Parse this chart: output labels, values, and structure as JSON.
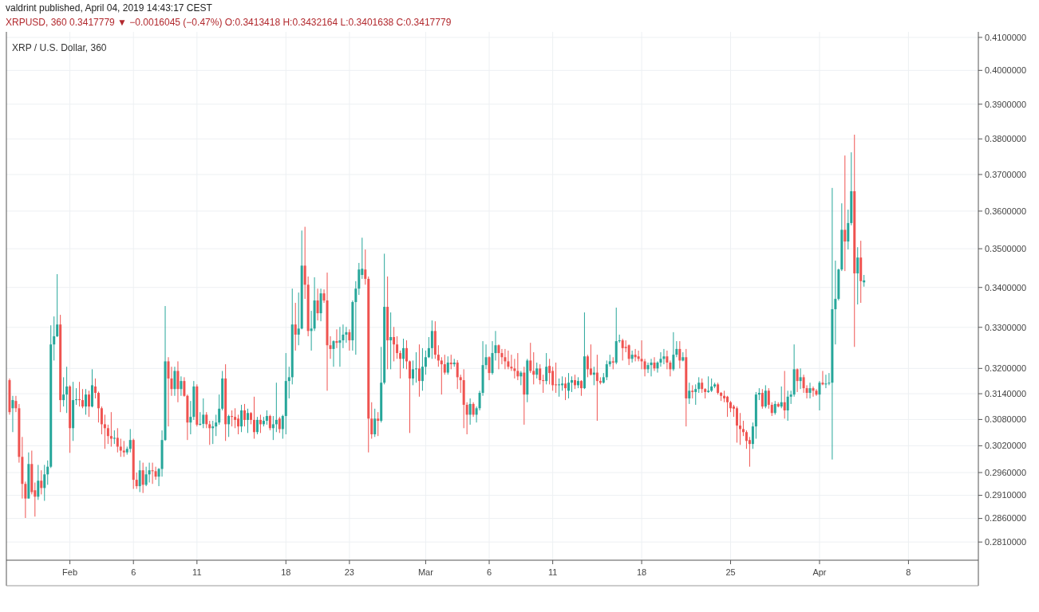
{
  "chart_data": {
    "type": "candlestick",
    "title": "XRP / U.S. Dollar, 360",
    "subtitle": "valdrint published, April 04, 2019 14:43:17 CEST",
    "annotations": [
      "XRPUSD, 360  0.3417779 ▼ −0.0016045 (−0.47%)  O:0.3413418  H:0.3432164  L:0.3401638  C:0.3417779"
    ],
    "colors": [
      "#ef5350",
      "#26a69a",
      "#ef5350",
      "#ef5350",
      "#ef5350",
      "#ef5350",
      "#26a69a",
      "#ef5350",
      "#ef5350",
      "#26a69a",
      "#ef5350",
      "#26a69a",
      "#26a69a",
      "#26a69a",
      "#26a69a",
      "#26a69a",
      "#ef5350",
      "#26a69a",
      "#26a69a",
      "#ef5350",
      "#26a69a",
      "#26a69a",
      "#ef5350",
      "#ef5350",
      "#26a69a",
      "#ef5350",
      "#26a69a",
      "#ef5350",
      "#ef5350",
      "#ef5350",
      "#ef5350",
      "#ef5350",
      "#ef5350",
      "#26a69a",
      "#ef5350",
      "#ef5350",
      "#ef5350",
      "#26a69a",
      "#26a69a",
      "#ef5350",
      "#ef5350",
      "#26a69a",
      "#ef5350",
      "#26a69a",
      "#26a69a",
      "#ef5350",
      "#ef5350",
      "#26a69a",
      "#26a69a",
      "#26a69a",
      "#ef5350",
      "#ef5350",
      "#26a69a",
      "#ef5350",
      "#26a69a",
      "#ef5350",
      "#ef5350",
      "#26a69a",
      "#26a69a",
      "#ef5350",
      "#26a69a",
      "#26a69a",
      "#ef5350",
      "#ef5350",
      "#26a69a",
      "#26a69a",
      "#26a69a",
      "#26a69a",
      "#ef5350",
      "#26a69a",
      "#ef5350",
      "#ef5350",
      "#ef5350",
      "#26a69a",
      "#ef5350",
      "#26a69a",
      "#ef5350",
      "#ef5350",
      "#26a69a",
      "#ef5350",
      "#26a69a",
      "#26a69a",
      "#ef5350",
      "#26a69a",
      "#26a69a",
      "#ef5350",
      "#26a69a",
      "#26a69a",
      "#26a69a",
      "#26a69a",
      "#ef5350",
      "#26a69a",
      "#26a69a",
      "#ef5350",
      "#ef5350",
      "#26a69a",
      "#26a69a",
      "#ef5350",
      "#26a69a",
      "#ef5350",
      "#ef5350",
      "#ef5350",
      "#26a69a",
      "#ef5350",
      "#26a69a",
      "#26a69a",
      "#26a69a",
      "#ef5350",
      "#26a69a",
      "#26a69a",
      "#26a69a",
      "#26a69a",
      "#ef5350",
      "#ef5350",
      "#ef5350",
      "#26a69a",
      "#ef5350",
      "#26a69a",
      "#26a69a",
      "#ef5350",
      "#26a69a",
      "#ef5350",
      "#ef5350",
      "#ef5350",
      "#26a69a",
      "#ef5350",
      "#ef5350",
      "#26a69a",
      "#26a69a",
      "#ef5350",
      "#26a69a",
      "#26a69a",
      "#26a69a",
      "#26a69a",
      "#ef5350",
      "#ef5350",
      "#ef5350",
      "#ef5350",
      "#26a69a",
      "#ef5350",
      "#26a69a",
      "#ef5350",
      "#ef5350",
      "#ef5350",
      "#ef5350",
      "#26a69a",
      "#ef5350",
      "#26a69a",
      "#26a69a",
      "#26a69a",
      "#26a69a",
      "#ef5350",
      "#26a69a",
      "#26a69a",
      "#ef5350",
      "#ef5350",
      "#ef5350",
      "#ef5350",
      "#ef5350",
      "#ef5350",
      "#ef5350",
      "#26a69a",
      "#ef5350",
      "#26a69a",
      "#ef5350",
      "#ef5350",
      "#26a69a",
      "#ef5350",
      "#ef5350",
      "#26a69a",
      "#ef5350",
      "#ef5350",
      "#ef5350",
      "#26a69a",
      "#26a69a",
      "#ef5350",
      "#26a69a",
      "#26a69a",
      "#ef5350",
      "#26a69a",
      "#ef5350",
      "#26a69a",
      "#ef5350",
      "#ef5350",
      "#26a69a",
      "#ef5350",
      "#ef5350",
      "#26a69a",
      "#26a69a",
      "#26a69a",
      "#ef5350",
      "#26a69a",
      "#26a69a",
      "#ef5350",
      "#ef5350",
      "#ef5350",
      "#26a69a",
      "#ef5350",
      "#ef5350",
      "#ef5350",
      "#ef5350",
      "#26a69a",
      "#26a69a",
      "#ef5350",
      "#26a69a",
      "#26a69a",
      "#26a69a",
      "#ef5350",
      "#ef5350",
      "#26a69a",
      "#26a69a",
      "#ef5350",
      "#26a69a",
      "#ef5350",
      "#26a69a",
      "#ef5350",
      "#26a69a",
      "#26a69a",
      "#ef5350",
      "#ef5350",
      "#26a69a",
      "#26a69a",
      "#26a69a",
      "#ef5350",
      "#ef5350",
      "#ef5350",
      "#ef5350",
      "#ef5350",
      "#ef5350",
      "#ef5350",
      "#ef5350",
      "#ef5350",
      "#ef5350",
      "#ef5350",
      "#26a69a",
      "#26a69a",
      "#26a69a",
      "#ef5350",
      "#26a69a",
      "#ef5350",
      "#ef5350",
      "#26a69a",
      "#ef5350",
      "#26a69a",
      "#ef5350",
      "#26a69a",
      "#26a69a",
      "#26a69a",
      "#ef5350",
      "#26a69a",
      "#ef5350",
      "#ef5350",
      "#26a69a",
      "#ef5350",
      "#ef5350",
      "#26a69a",
      "#ef5350",
      "#26a69a",
      "#26a69a",
      "#26a69a",
      "#26a69a",
      "#26a69a",
      "#26a69a",
      "#ef5350",
      "#26a69a",
      "#26a69a",
      "#ef5350",
      "#26a69a",
      "#ef5350",
      "#26a69a"
    ],
    "grid": true,
    "log": true,
    "xlim": [
      "2019-01-27T00:00",
      "2019-04-13T12:00"
    ],
    "ylim": [
      0.2772,
      0.4117
    ],
    "xticks": [
      {
        "value": "2019-02-01",
        "label": "Feb"
      },
      {
        "value": "2019-02-06",
        "label": "6"
      },
      {
        "value": "2019-02-11",
        "label": "11"
      },
      {
        "value": "2019-02-18",
        "label": "18"
      },
      {
        "value": "2019-02-23",
        "label": "23"
      },
      {
        "value": "2019-03-01",
        "label": "Mar"
      },
      {
        "value": "2019-03-06",
        "label": "6"
      },
      {
        "value": "2019-03-11",
        "label": "11"
      },
      {
        "value": "2019-03-18",
        "label": "18"
      },
      {
        "value": "2019-03-25",
        "label": "25"
      },
      {
        "value": "2019-04-01",
        "label": "Apr"
      },
      {
        "value": "2019-04-08",
        "label": "8"
      }
    ],
    "yticks": [
      {
        "value": 0.281,
        "label": "0.2810000"
      },
      {
        "value": 0.286,
        "label": "0.2860000"
      },
      {
        "value": 0.291,
        "label": "0.2910000"
      },
      {
        "value": 0.296,
        "label": "0.2960000"
      },
      {
        "value": 0.302,
        "label": "0.3020000"
      },
      {
        "value": 0.308,
        "label": "0.3080000"
      },
      {
        "value": 0.314,
        "label": "0.3140000"
      },
      {
        "value": 0.32,
        "label": "0.3200000"
      },
      {
        "value": 0.33,
        "label": "0.3300000"
      },
      {
        "value": 0.34,
        "label": "0.3400000"
      },
      {
        "value": 0.35,
        "label": "0.3500000"
      },
      {
        "value": 0.36,
        "label": "0.3600000"
      },
      {
        "value": 0.37,
        "label": "0.3700000"
      },
      {
        "value": 0.38,
        "label": "0.3800000"
      },
      {
        "value": 0.39,
        "label": "0.3900000"
      },
      {
        "value": 0.4,
        "label": "0.4000000"
      },
      {
        "value": 0.41,
        "label": "0.4100000"
      }
    ],
    "x": [
      "2019-01-27T06:00",
      "2019-01-27T12:00",
      "2019-01-27T18:00",
      "2019-01-28T00:00",
      "2019-01-28T06:00",
      "2019-01-28T12:00",
      "2019-01-28T18:00",
      "2019-01-29T00:00",
      "2019-01-29T06:00",
      "2019-01-29T12:00",
      "2019-01-29T18:00",
      "2019-01-30T00:00",
      "2019-01-30T06:00",
      "2019-01-30T12:00",
      "2019-01-30T18:00",
      "2019-01-31T00:00",
      "2019-01-31T06:00",
      "2019-01-31T12:00",
      "2019-01-31T18:00",
      "2019-02-01T00:00",
      "2019-02-01T06:00",
      "2019-02-01T12:00",
      "2019-02-01T18:00",
      "2019-02-02T00:00",
      "2019-02-02T06:00",
      "2019-02-02T12:00",
      "2019-02-02T18:00",
      "2019-02-03T00:00",
      "2019-02-03T06:00",
      "2019-02-03T12:00",
      "2019-02-03T18:00",
      "2019-02-04T00:00",
      "2019-02-04T06:00",
      "2019-02-04T12:00",
      "2019-02-04T18:00",
      "2019-02-05T00:00",
      "2019-02-05T06:00",
      "2019-02-05T12:00",
      "2019-02-05T18:00",
      "2019-02-06T00:00",
      "2019-02-06T06:00",
      "2019-02-06T12:00",
      "2019-02-06T18:00",
      "2019-02-07T00:00",
      "2019-02-07T06:00",
      "2019-02-07T12:00",
      "2019-02-07T18:00",
      "2019-02-08T00:00",
      "2019-02-08T06:00",
      "2019-02-08T12:00",
      "2019-02-08T18:00",
      "2019-02-09T00:00",
      "2019-02-09T06:00",
      "2019-02-09T12:00",
      "2019-02-09T18:00",
      "2019-02-10T00:00",
      "2019-02-10T06:00",
      "2019-02-10T12:00",
      "2019-02-10T18:00",
      "2019-02-11T00:00",
      "2019-02-11T06:00",
      "2019-02-11T12:00",
      "2019-02-11T18:00",
      "2019-02-12T00:00",
      "2019-02-12T06:00",
      "2019-02-12T12:00",
      "2019-02-12T18:00",
      "2019-02-13T00:00",
      "2019-02-13T06:00",
      "2019-02-13T12:00",
      "2019-02-13T18:00",
      "2019-02-14T00:00",
      "2019-02-14T06:00",
      "2019-02-14T12:00",
      "2019-02-14T18:00",
      "2019-02-15T00:00",
      "2019-02-15T06:00",
      "2019-02-15T12:00",
      "2019-02-15T18:00",
      "2019-02-16T00:00",
      "2019-02-16T06:00",
      "2019-02-16T12:00",
      "2019-02-16T18:00",
      "2019-02-17T00:00",
      "2019-02-17T06:00",
      "2019-02-17T12:00",
      "2019-02-17T18:00",
      "2019-02-18T00:00",
      "2019-02-18T06:00",
      "2019-02-18T12:00",
      "2019-02-18T18:00",
      "2019-02-19T00:00",
      "2019-02-19T06:00",
      "2019-02-19T12:00",
      "2019-02-19T18:00",
      "2019-02-20T00:00",
      "2019-02-20T06:00",
      "2019-02-20T12:00",
      "2019-02-20T18:00",
      "2019-02-21T00:00",
      "2019-02-21T06:00",
      "2019-02-21T12:00",
      "2019-02-21T18:00",
      "2019-02-22T00:00",
      "2019-02-22T06:00",
      "2019-02-22T12:00",
      "2019-02-22T18:00",
      "2019-02-23T00:00",
      "2019-02-23T06:00",
      "2019-02-23T12:00",
      "2019-02-23T18:00",
      "2019-02-24T00:00",
      "2019-02-24T06:00",
      "2019-02-24T12:00",
      "2019-02-24T18:00",
      "2019-02-25T00:00",
      "2019-02-25T06:00",
      "2019-02-25T12:00",
      "2019-02-25T18:00",
      "2019-02-26T00:00",
      "2019-02-26T06:00",
      "2019-02-26T12:00",
      "2019-02-26T18:00",
      "2019-02-27T00:00",
      "2019-02-27T06:00",
      "2019-02-27T12:00",
      "2019-02-27T18:00",
      "2019-02-28T00:00",
      "2019-02-28T06:00",
      "2019-02-28T12:00",
      "2019-02-28T18:00",
      "2019-03-01T00:00",
      "2019-03-01T06:00",
      "2019-03-01T12:00",
      "2019-03-01T18:00",
      "2019-03-02T00:00",
      "2019-03-02T06:00",
      "2019-03-02T12:00",
      "2019-03-02T18:00",
      "2019-03-03T00:00",
      "2019-03-03T06:00",
      "2019-03-03T12:00",
      "2019-03-03T18:00",
      "2019-03-04T00:00",
      "2019-03-04T06:00",
      "2019-03-04T12:00",
      "2019-03-04T18:00",
      "2019-03-05T00:00",
      "2019-03-05T06:00",
      "2019-03-05T12:00",
      "2019-03-05T18:00",
      "2019-03-06T00:00",
      "2019-03-06T06:00",
      "2019-03-06T12:00",
      "2019-03-06T18:00",
      "2019-03-07T00:00",
      "2019-03-07T06:00",
      "2019-03-07T12:00",
      "2019-03-07T18:00",
      "2019-03-08T00:00",
      "2019-03-08T06:00",
      "2019-03-08T12:00",
      "2019-03-08T18:00",
      "2019-03-09T00:00",
      "2019-03-09T06:00",
      "2019-03-09T12:00",
      "2019-03-09T18:00",
      "2019-03-10T00:00",
      "2019-03-10T06:00",
      "2019-03-10T12:00",
      "2019-03-10T18:00",
      "2019-03-11T00:00",
      "2019-03-11T06:00",
      "2019-03-11T12:00",
      "2019-03-11T18:00",
      "2019-03-12T00:00",
      "2019-03-12T06:00",
      "2019-03-12T12:00",
      "2019-03-12T18:00",
      "2019-03-13T00:00",
      "2019-03-13T06:00",
      "2019-03-13T12:00",
      "2019-03-13T18:00",
      "2019-03-14T00:00",
      "2019-03-14T06:00",
      "2019-03-14T12:00",
      "2019-03-14T18:00",
      "2019-03-15T00:00",
      "2019-03-15T06:00",
      "2019-03-15T12:00",
      "2019-03-15T18:00",
      "2019-03-16T00:00",
      "2019-03-16T06:00",
      "2019-03-16T12:00",
      "2019-03-16T18:00",
      "2019-03-17T00:00",
      "2019-03-17T06:00",
      "2019-03-17T12:00",
      "2019-03-17T18:00",
      "2019-03-18T00:00",
      "2019-03-18T06:00",
      "2019-03-18T12:00",
      "2019-03-18T18:00",
      "2019-03-19T00:00",
      "2019-03-19T06:00",
      "2019-03-19T12:00",
      "2019-03-19T18:00",
      "2019-03-20T00:00",
      "2019-03-20T06:00",
      "2019-03-20T12:00",
      "2019-03-20T18:00",
      "2019-03-21T00:00",
      "2019-03-21T06:00",
      "2019-03-21T12:00",
      "2019-03-21T18:00",
      "2019-03-22T00:00",
      "2019-03-22T06:00",
      "2019-03-22T12:00",
      "2019-03-22T18:00",
      "2019-03-23T00:00",
      "2019-03-23T06:00",
      "2019-03-23T12:00",
      "2019-03-23T18:00",
      "2019-03-24T00:00",
      "2019-03-24T06:00",
      "2019-03-24T12:00",
      "2019-03-24T18:00",
      "2019-03-25T00:00",
      "2019-03-25T06:00",
      "2019-03-25T12:00",
      "2019-03-25T18:00",
      "2019-03-26T00:00",
      "2019-03-26T06:00",
      "2019-03-26T12:00",
      "2019-03-26T18:00",
      "2019-03-27T00:00",
      "2019-03-27T06:00",
      "2019-03-27T12:00",
      "2019-03-27T18:00",
      "2019-03-28T00:00",
      "2019-03-28T06:00",
      "2019-03-28T12:00",
      "2019-03-28T18:00",
      "2019-03-29T00:00",
      "2019-03-29T06:00",
      "2019-03-29T12:00",
      "2019-03-29T18:00",
      "2019-03-30T00:00",
      "2019-03-30T06:00",
      "2019-03-30T12:00",
      "2019-03-30T18:00",
      "2019-03-31T00:00",
      "2019-03-31T06:00",
      "2019-03-31T12:00",
      "2019-03-31T18:00",
      "2019-04-01T00:00",
      "2019-04-01T06:00",
      "2019-04-01T12:00",
      "2019-04-01T18:00",
      "2019-04-02T00:00",
      "2019-04-02T06:00",
      "2019-04-02T12:00",
      "2019-04-02T18:00",
      "2019-04-03T00:00",
      "2019-04-03T06:00",
      "2019-04-03T12:00",
      "2019-04-03T18:00",
      "2019-04-04T00:00",
      "2019-04-04T06:00",
      "2019-04-04T12:00"
    ],
    "ohlc": [
      [
        0.3172,
        0.3176,
        0.3091,
        0.3097
      ],
      [
        0.3106,
        0.3135,
        0.3051,
        0.3125
      ],
      [
        0.3123,
        0.3135,
        0.3097,
        0.3106
      ],
      [
        0.3106,
        0.3116,
        0.2982,
        0.2995
      ],
      [
        0.2995,
        0.304,
        0.2903,
        0.2935
      ],
      [
        0.2935,
        0.294,
        0.2861,
        0.2903
      ],
      [
        0.2903,
        0.3005,
        0.2903,
        0.2979
      ],
      [
        0.2979,
        0.3009,
        0.2912,
        0.2917
      ],
      [
        0.2921,
        0.2938,
        0.2864,
        0.2907
      ],
      [
        0.2907,
        0.2977,
        0.29,
        0.2942
      ],
      [
        0.2942,
        0.2965,
        0.2912,
        0.2926
      ],
      [
        0.2926,
        0.2977,
        0.2898,
        0.2956
      ],
      [
        0.2956,
        0.2987,
        0.2933,
        0.2973
      ],
      [
        0.2973,
        0.3305,
        0.297,
        0.3258
      ],
      [
        0.3258,
        0.3327,
        0.3219,
        0.3278
      ],
      [
        0.3278,
        0.3434,
        0.3276,
        0.3307
      ],
      [
        0.3307,
        0.3331,
        0.3097,
        0.3125
      ],
      [
        0.3125,
        0.3179,
        0.311,
        0.3138
      ],
      [
        0.3138,
        0.3204,
        0.3095,
        0.3157
      ],
      [
        0.3157,
        0.316,
        0.3004,
        0.306
      ],
      [
        0.306,
        0.3168,
        0.3031,
        0.3125
      ],
      [
        0.3125,
        0.3153,
        0.3114,
        0.3127
      ],
      [
        0.3127,
        0.3168,
        0.311,
        0.3125
      ],
      [
        0.3125,
        0.3151,
        0.3106,
        0.311
      ],
      [
        0.311,
        0.3151,
        0.3091,
        0.3138
      ],
      [
        0.3138,
        0.3147,
        0.3086,
        0.311
      ],
      [
        0.311,
        0.3198,
        0.3108,
        0.316
      ],
      [
        0.3157,
        0.3176,
        0.3129,
        0.3142
      ],
      [
        0.3142,
        0.3145,
        0.3073,
        0.3106
      ],
      [
        0.3106,
        0.311,
        0.3046,
        0.3069
      ],
      [
        0.3069,
        0.3091,
        0.3013,
        0.306
      ],
      [
        0.306,
        0.3068,
        0.3024,
        0.3042
      ],
      [
        0.3042,
        0.3097,
        0.3018,
        0.3036
      ],
      [
        0.3036,
        0.3055,
        0.3024,
        0.3038
      ],
      [
        0.3038,
        0.306,
        0.3005,
        0.3018
      ],
      [
        0.3018,
        0.3036,
        0.2995,
        0.3009
      ],
      [
        0.3009,
        0.3031,
        0.2995,
        0.3005
      ],
      [
        0.3005,
        0.3018,
        0.3,
        0.3013
      ],
      [
        0.3013,
        0.3058,
        0.3005,
        0.3033
      ],
      [
        0.3033,
        0.3036,
        0.2924,
        0.2944
      ],
      [
        0.2944,
        0.296,
        0.2924,
        0.293
      ],
      [
        0.293,
        0.2987,
        0.2917,
        0.2965
      ],
      [
        0.2965,
        0.2982,
        0.2915,
        0.2933
      ],
      [
        0.2933,
        0.2973,
        0.293,
        0.2956
      ],
      [
        0.2956,
        0.2982,
        0.2938,
        0.2965
      ],
      [
        0.2965,
        0.2982,
        0.2935,
        0.2963
      ],
      [
        0.2963,
        0.2973,
        0.2944,
        0.2951
      ],
      [
        0.2951,
        0.297,
        0.293,
        0.2968
      ],
      [
        0.2968,
        0.3055,
        0.2951,
        0.3033
      ],
      [
        0.3033,
        0.3353,
        0.3031,
        0.3217
      ],
      [
        0.3217,
        0.3227,
        0.3064,
        0.3176
      ],
      [
        0.3176,
        0.3204,
        0.3135,
        0.3151
      ],
      [
        0.3151,
        0.3204,
        0.3135,
        0.3194
      ],
      [
        0.3194,
        0.3217,
        0.312,
        0.3151
      ],
      [
        0.3151,
        0.3181,
        0.3135,
        0.317
      ],
      [
        0.317,
        0.3179,
        0.3133,
        0.3135
      ],
      [
        0.3135,
        0.3138,
        0.3033,
        0.3073
      ],
      [
        0.3073,
        0.3123,
        0.3046,
        0.3086
      ],
      [
        0.3086,
        0.317,
        0.3079,
        0.3157
      ],
      [
        0.3157,
        0.3162,
        0.3064,
        0.3068
      ],
      [
        0.3068,
        0.3097,
        0.3066,
        0.307
      ],
      [
        0.307,
        0.3129,
        0.306,
        0.3091
      ],
      [
        0.3091,
        0.3097,
        0.306,
        0.3069
      ],
      [
        0.3069,
        0.3077,
        0.3022,
        0.306
      ],
      [
        0.306,
        0.3077,
        0.3024,
        0.3064
      ],
      [
        0.3064,
        0.3091,
        0.3042,
        0.3073
      ],
      [
        0.3073,
        0.3138,
        0.3068,
        0.3105
      ],
      [
        0.3105,
        0.3194,
        0.3101,
        0.3176
      ],
      [
        0.3176,
        0.321,
        0.3031,
        0.3069
      ],
      [
        0.3069,
        0.3091,
        0.304,
        0.3088
      ],
      [
        0.3088,
        0.3101,
        0.3064,
        0.3086
      ],
      [
        0.3086,
        0.3106,
        0.306,
        0.3079
      ],
      [
        0.3082,
        0.3091,
        0.3046,
        0.3064
      ],
      [
        0.3064,
        0.3114,
        0.3051,
        0.3101
      ],
      [
        0.3101,
        0.3116,
        0.3064,
        0.3079
      ],
      [
        0.3079,
        0.3105,
        0.3049,
        0.3095
      ],
      [
        0.3095,
        0.3097,
        0.3069,
        0.3079
      ],
      [
        0.3079,
        0.3133,
        0.3036,
        0.3051
      ],
      [
        0.3051,
        0.3086,
        0.3046,
        0.3079
      ],
      [
        0.3079,
        0.3091,
        0.3049,
        0.3069
      ],
      [
        0.3069,
        0.3086,
        0.3064,
        0.3077
      ],
      [
        0.3077,
        0.3101,
        0.3068,
        0.3088
      ],
      [
        0.3088,
        0.3091,
        0.3055,
        0.306
      ],
      [
        0.306,
        0.3088,
        0.3033,
        0.3069
      ],
      [
        0.3069,
        0.3166,
        0.3051,
        0.3079
      ],
      [
        0.3082,
        0.3086,
        0.3049,
        0.3058
      ],
      [
        0.3058,
        0.3091,
        0.3036,
        0.3088
      ],
      [
        0.3088,
        0.3237,
        0.3046,
        0.317
      ],
      [
        0.317,
        0.3204,
        0.3129,
        0.3179
      ],
      [
        0.3179,
        0.3397,
        0.3162,
        0.3307
      ],
      [
        0.3307,
        0.3361,
        0.3243,
        0.3282
      ],
      [
        0.3282,
        0.3387,
        0.3256,
        0.3297
      ],
      [
        0.3297,
        0.3548,
        0.3295,
        0.3456
      ],
      [
        0.3456,
        0.3558,
        0.3371,
        0.3407
      ],
      [
        0.3407,
        0.3428,
        0.3278,
        0.3291
      ],
      [
        0.3291,
        0.3341,
        0.3243,
        0.3297
      ],
      [
        0.3297,
        0.3426,
        0.3291,
        0.3367
      ],
      [
        0.3367,
        0.3397,
        0.3317,
        0.3335
      ],
      [
        0.3335,
        0.3397,
        0.3315,
        0.3385
      ],
      [
        0.3385,
        0.3395,
        0.3361,
        0.3367
      ],
      [
        0.3367,
        0.3438,
        0.3147,
        0.3256
      ],
      [
        0.3256,
        0.3278,
        0.3223,
        0.3247
      ],
      [
        0.3247,
        0.3268,
        0.3204,
        0.3266
      ],
      [
        0.3266,
        0.3295,
        0.3249,
        0.3262
      ],
      [
        0.3262,
        0.3301,
        0.3204,
        0.3268
      ],
      [
        0.3268,
        0.3307,
        0.3249,
        0.3282
      ],
      [
        0.3282,
        0.3301,
        0.3262,
        0.3288
      ],
      [
        0.3288,
        0.3295,
        0.3243,
        0.3268
      ],
      [
        0.3268,
        0.3367,
        0.3243,
        0.3363
      ],
      [
        0.3363,
        0.3416,
        0.3233,
        0.3397
      ],
      [
        0.3397,
        0.3463,
        0.3381,
        0.3446
      ],
      [
        0.3432,
        0.3529,
        0.3422,
        0.3448
      ],
      [
        0.3446,
        0.3498,
        0.3407,
        0.3422
      ],
      [
        0.3422,
        0.3428,
        0.3005,
        0.3082
      ],
      [
        0.3082,
        0.312,
        0.3036,
        0.3046
      ],
      [
        0.3046,
        0.3105,
        0.304,
        0.3082
      ],
      [
        0.3082,
        0.3097,
        0.3042,
        0.3077
      ],
      [
        0.3077,
        0.3252,
        0.3073,
        0.3166
      ],
      [
        0.3166,
        0.3487,
        0.3162,
        0.3351
      ],
      [
        0.3351,
        0.3428,
        0.3198,
        0.3268
      ],
      [
        0.3268,
        0.3337,
        0.3198,
        0.3276
      ],
      [
        0.3276,
        0.3301,
        0.3217,
        0.3258
      ],
      [
        0.3258,
        0.3278,
        0.3223,
        0.3237
      ],
      [
        0.3237,
        0.3243,
        0.3176,
        0.3223
      ],
      [
        0.3223,
        0.3272,
        0.32,
        0.3249
      ],
      [
        0.3249,
        0.3268,
        0.3198,
        0.3217
      ],
      [
        0.3217,
        0.3219,
        0.3049,
        0.3176
      ],
      [
        0.3176,
        0.3219,
        0.316,
        0.3198
      ],
      [
        0.3198,
        0.3239,
        0.3166,
        0.32
      ],
      [
        0.32,
        0.3258,
        0.3133,
        0.317
      ],
      [
        0.317,
        0.3249,
        0.3147,
        0.3204
      ],
      [
        0.3204,
        0.3243,
        0.3185,
        0.3227
      ],
      [
        0.3227,
        0.3276,
        0.3225,
        0.3249
      ],
      [
        0.3249,
        0.3317,
        0.3223,
        0.3291
      ],
      [
        0.3291,
        0.3315,
        0.3223,
        0.3233
      ],
      [
        0.3233,
        0.3256,
        0.3204,
        0.3219
      ],
      [
        0.3219,
        0.3227,
        0.3138,
        0.321
      ],
      [
        0.321,
        0.3233,
        0.3185,
        0.319
      ],
      [
        0.319,
        0.3229,
        0.3185,
        0.3214
      ],
      [
        0.3214,
        0.3233,
        0.3198,
        0.321
      ],
      [
        0.321,
        0.3223,
        0.3204,
        0.3214
      ],
      [
        0.3214,
        0.322,
        0.3151,
        0.3179
      ],
      [
        0.3179,
        0.3185,
        0.3142,
        0.3172
      ],
      [
        0.3172,
        0.3198,
        0.306,
        0.3114
      ],
      [
        0.3114,
        0.312,
        0.3046,
        0.3091
      ],
      [
        0.3091,
        0.3129,
        0.3068,
        0.3116
      ],
      [
        0.3116,
        0.312,
        0.3086,
        0.3091
      ],
      [
        0.3091,
        0.311,
        0.3073,
        0.3106
      ],
      [
        0.3106,
        0.3147,
        0.3101,
        0.3142
      ],
      [
        0.3142,
        0.3266,
        0.3135,
        0.3208
      ],
      [
        0.3208,
        0.3258,
        0.3198,
        0.3227
      ],
      [
        0.3227,
        0.3229,
        0.3172,
        0.3189
      ],
      [
        0.3189,
        0.3266,
        0.3185,
        0.3237
      ],
      [
        0.3237,
        0.3291,
        0.3219,
        0.3256
      ],
      [
        0.3256,
        0.3258,
        0.3198,
        0.3237
      ],
      [
        0.3237,
        0.3247,
        0.321,
        0.3227
      ],
      [
        0.3227,
        0.3247,
        0.3198,
        0.3217
      ],
      [
        0.3217,
        0.3243,
        0.3198,
        0.3204
      ],
      [
        0.3204,
        0.3233,
        0.3194,
        0.32
      ],
      [
        0.32,
        0.3223,
        0.3176,
        0.3194
      ],
      [
        0.3194,
        0.3237,
        0.3172,
        0.3181
      ],
      [
        0.3181,
        0.3194,
        0.316,
        0.319
      ],
      [
        0.319,
        0.3204,
        0.3068,
        0.3138
      ],
      [
        0.3138,
        0.3223,
        0.312,
        0.3219
      ],
      [
        0.3219,
        0.3262,
        0.3189,
        0.3194
      ],
      [
        0.3194,
        0.3239,
        0.3162,
        0.3185
      ],
      [
        0.3185,
        0.3214,
        0.3176,
        0.32
      ],
      [
        0.32,
        0.321,
        0.3162,
        0.3172
      ],
      [
        0.3172,
        0.3185,
        0.3142,
        0.317
      ],
      [
        0.317,
        0.3237,
        0.3162,
        0.3204
      ],
      [
        0.3206,
        0.3223,
        0.3162,
        0.3189
      ],
      [
        0.3194,
        0.3204,
        0.3147,
        0.316
      ],
      [
        0.3162,
        0.3214,
        0.3142,
        0.316
      ],
      [
        0.316,
        0.3176,
        0.3133,
        0.3162
      ],
      [
        0.316,
        0.3181,
        0.3147,
        0.3164
      ],
      [
        0.3164,
        0.3179,
        0.3125,
        0.3153
      ],
      [
        0.3147,
        0.3189,
        0.3129,
        0.3166
      ],
      [
        0.3166,
        0.3181,
        0.3144,
        0.3172
      ],
      [
        0.3172,
        0.3185,
        0.3151,
        0.316
      ],
      [
        0.316,
        0.3179,
        0.3153,
        0.317
      ],
      [
        0.317,
        0.3172,
        0.3135,
        0.3153
      ],
      [
        0.3153,
        0.3337,
        0.3151,
        0.3229
      ],
      [
        0.3229,
        0.3233,
        0.3179,
        0.3198
      ],
      [
        0.32,
        0.3258,
        0.3183,
        0.3185
      ],
      [
        0.3185,
        0.3204,
        0.316,
        0.319
      ],
      [
        0.319,
        0.3233,
        0.3077,
        0.317
      ],
      [
        0.317,
        0.3179,
        0.3162,
        0.3166
      ],
      [
        0.3166,
        0.3189,
        0.3164,
        0.3179
      ],
      [
        0.3179,
        0.3219,
        0.3172,
        0.321
      ],
      [
        0.321,
        0.3233,
        0.3204,
        0.3217
      ],
      [
        0.3217,
        0.3227,
        0.3198,
        0.3214
      ],
      [
        0.3214,
        0.3349,
        0.321,
        0.3266
      ],
      [
        0.3266,
        0.3282,
        0.3262,
        0.3268
      ],
      [
        0.3268,
        0.3272,
        0.3219,
        0.3249
      ],
      [
        0.3252,
        0.3268,
        0.3239,
        0.3249
      ],
      [
        0.3256,
        0.3258,
        0.3208,
        0.3223
      ],
      [
        0.3223,
        0.3243,
        0.3214,
        0.3233
      ],
      [
        0.3233,
        0.3247,
        0.3217,
        0.3227
      ],
      [
        0.3229,
        0.3243,
        0.3217,
        0.3223
      ],
      [
        0.3223,
        0.3268,
        0.3198,
        0.3217
      ],
      [
        0.3217,
        0.3223,
        0.3181,
        0.3198
      ],
      [
        0.3198,
        0.3214,
        0.3189,
        0.3208
      ],
      [
        0.3208,
        0.3223,
        0.3181,
        0.3214
      ],
      [
        0.3214,
        0.3227,
        0.3194,
        0.32
      ],
      [
        0.32,
        0.3217,
        0.319,
        0.3214
      ],
      [
        0.3214,
        0.3239,
        0.3204,
        0.3223
      ],
      [
        0.3223,
        0.3247,
        0.321,
        0.3229
      ],
      [
        0.3229,
        0.3243,
        0.3198,
        0.3214
      ],
      [
        0.3214,
        0.3219,
        0.3181,
        0.3198
      ],
      [
        0.3198,
        0.3288,
        0.3194,
        0.3233
      ],
      [
        0.3233,
        0.3266,
        0.3227,
        0.3247
      ],
      [
        0.3247,
        0.3266,
        0.32,
        0.3219
      ],
      [
        0.3219,
        0.3239,
        0.3217,
        0.3227
      ],
      [
        0.3227,
        0.3247,
        0.3064,
        0.3129
      ],
      [
        0.3129,
        0.3166,
        0.3116,
        0.3147
      ],
      [
        0.3147,
        0.316,
        0.3129,
        0.3144
      ],
      [
        0.3144,
        0.3162,
        0.3114,
        0.3151
      ],
      [
        0.3151,
        0.3179,
        0.3142,
        0.3166
      ],
      [
        0.3166,
        0.3176,
        0.3142,
        0.3151
      ],
      [
        0.3151,
        0.3153,
        0.3129,
        0.3144
      ],
      [
        0.3144,
        0.3181,
        0.3142,
        0.3147
      ],
      [
        0.3147,
        0.3176,
        0.3144,
        0.3157
      ],
      [
        0.3157,
        0.3166,
        0.3153,
        0.3162
      ],
      [
        0.3162,
        0.3166,
        0.3138,
        0.3142
      ],
      [
        0.3142,
        0.3144,
        0.3123,
        0.3135
      ],
      [
        0.3135,
        0.3147,
        0.312,
        0.3129
      ],
      [
        0.3133,
        0.3135,
        0.3086,
        0.312
      ],
      [
        0.312,
        0.3123,
        0.3097,
        0.3106
      ],
      [
        0.311,
        0.3114,
        0.3086,
        0.3105
      ],
      [
        0.3106,
        0.311,
        0.3027,
        0.3066
      ],
      [
        0.3066,
        0.3095,
        0.3022,
        0.3058
      ],
      [
        0.3058,
        0.3077,
        0.3042,
        0.3051
      ],
      [
        0.3051,
        0.3055,
        0.3013,
        0.3031
      ],
      [
        0.3033,
        0.304,
        0.2973,
        0.3024
      ],
      [
        0.3024,
        0.3073,
        0.3013,
        0.3064
      ],
      [
        0.3064,
        0.3144,
        0.3036,
        0.3138
      ],
      [
        0.3138,
        0.3153,
        0.3125,
        0.3142
      ],
      [
        0.3142,
        0.3151,
        0.3105,
        0.311
      ],
      [
        0.311,
        0.316,
        0.3106,
        0.3147
      ],
      [
        0.3147,
        0.3153,
        0.3105,
        0.3114
      ],
      [
        0.3114,
        0.312,
        0.3088,
        0.3095
      ],
      [
        0.3095,
        0.3123,
        0.3091,
        0.3116
      ],
      [
        0.3116,
        0.312,
        0.3108,
        0.311
      ],
      [
        0.311,
        0.3157,
        0.3106,
        0.312
      ],
      [
        0.312,
        0.3194,
        0.3082,
        0.3101
      ],
      [
        0.3101,
        0.3147,
        0.3077,
        0.3133
      ],
      [
        0.3133,
        0.3147,
        0.3116,
        0.3138
      ],
      [
        0.3138,
        0.3258,
        0.3133,
        0.3198
      ],
      [
        0.3198,
        0.32,
        0.3144,
        0.317
      ],
      [
        0.317,
        0.32,
        0.3151,
        0.3179
      ],
      [
        0.3179,
        0.3185,
        0.3142,
        0.3153
      ],
      [
        0.3153,
        0.316,
        0.3129,
        0.3142
      ],
      [
        0.3142,
        0.3166,
        0.3129,
        0.3153
      ],
      [
        0.3153,
        0.3157,
        0.3133,
        0.3147
      ],
      [
        0.3147,
        0.3151,
        0.3135,
        0.3138
      ],
      [
        0.3138,
        0.317,
        0.3101,
        0.3166
      ],
      [
        0.3166,
        0.3194,
        0.316,
        0.3162
      ],
      [
        0.3162,
        0.3185,
        0.3153,
        0.3164
      ],
      [
        0.3164,
        0.3189,
        0.316,
        0.3166
      ],
      [
        0.3166,
        0.3663,
        0.2989,
        0.3345
      ],
      [
        0.3345,
        0.3469,
        0.3258,
        0.3371
      ],
      [
        0.3371,
        0.3448,
        0.3367,
        0.3446
      ],
      [
        0.3446,
        0.3621,
        0.3442,
        0.355
      ],
      [
        0.355,
        0.3753,
        0.3442,
        0.3519
      ],
      [
        0.3519,
        0.3604,
        0.3498,
        0.3568
      ],
      [
        0.3568,
        0.3762,
        0.3562,
        0.3654
      ],
      [
        0.3654,
        0.3812,
        0.3252,
        0.3436
      ],
      [
        0.3436,
        0.3504,
        0.3357,
        0.3477
      ],
      [
        0.3477,
        0.3521,
        0.3361,
        0.3416
      ],
      [
        0.3413,
        0.3432,
        0.3402,
        0.3418
      ]
    ]
  }
}
